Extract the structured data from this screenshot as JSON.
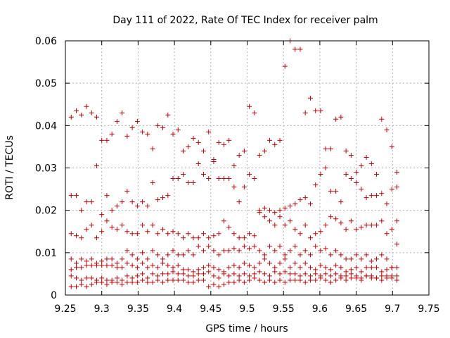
{
  "chart_data": {
    "type": "scatter",
    "title": "Day 111 of 2022, Rate Of TEC Index for receiver palm",
    "xlabel": "GPS time / hours",
    "ylabel": "ROTI / TECUs",
    "xlim": [
      9.25,
      9.75
    ],
    "ylim": [
      0,
      0.06
    ],
    "xticks": [
      "9.25",
      "9.3",
      "9.35",
      "9.4",
      "9.45",
      "9.5",
      "9.55",
      "9.6",
      "9.65",
      "9.7",
      "9.75"
    ],
    "yticks": [
      "0",
      "0.01",
      "0.02",
      "0.03",
      "0.04",
      "0.05",
      "0.06"
    ],
    "grid": true,
    "marker": "plus",
    "color": "#cc0000",
    "series": [
      {
        "x": [
          9.258,
          9.265,
          9.272,
          9.279,
          9.286,
          9.293,
          9.3,
          9.307,
          9.314,
          9.321,
          9.328,
          9.335,
          9.342,
          9.349,
          9.356,
          9.363,
          9.37,
          9.377,
          9.384,
          9.391,
          9.398,
          9.405,
          9.412,
          9.419,
          9.426,
          9.433,
          9.44,
          9.447,
          9.454,
          9.461,
          9.468,
          9.475,
          9.482,
          9.489,
          9.496,
          9.503,
          9.51,
          9.517,
          9.524,
          9.531,
          9.538,
          9.545,
          9.552,
          9.559,
          9.566,
          9.573,
          9.58,
          9.587,
          9.594,
          9.601,
          9.608,
          9.615,
          9.622,
          9.629,
          9.636,
          9.643,
          9.65,
          9.657,
          9.664,
          9.671,
          9.678,
          9.685,
          9.692,
          9.699,
          9.706
        ],
        "y": [
          0.042,
          0.0435,
          0.0425,
          0.0445,
          0.043,
          0.042,
          0.0365,
          0.0365,
          0.038,
          0.041,
          0.043,
          0.0375,
          0.0395,
          0.041,
          0.0385,
          0.038,
          0.0345,
          0.04,
          0.0395,
          0.0425,
          0.038,
          0.039,
          0.034,
          0.035,
          0.037,
          0.036,
          0.034,
          0.0385,
          0.032,
          0.036,
          0.0355,
          0.0365,
          0.0305,
          0.033,
          0.034,
          0.0445,
          0.043,
          0.033,
          0.034,
          0.0365,
          0.0355,
          0.0365,
          0.054,
          0.06,
          0.058,
          0.058,
          0.043,
          0.0465,
          0.0435,
          0.0435,
          0.0345,
          0.0345,
          0.0415,
          0.042,
          0.034,
          0.033,
          0.029,
          0.0305,
          0.0325,
          0.031,
          0.0285,
          0.0415,
          0.039,
          0.035,
          0.029
        ]
      },
      {
        "x": [
          9.258,
          9.265,
          9.272,
          9.279,
          9.286,
          9.293,
          9.3,
          9.307,
          9.314,
          9.321,
          9.328,
          9.335,
          9.342,
          9.349,
          9.356,
          9.363,
          9.37,
          9.377,
          9.384,
          9.391,
          9.398,
          9.405,
          9.412,
          9.419,
          9.426,
          9.433,
          9.44,
          9.447,
          9.454,
          9.461,
          9.468,
          9.475,
          9.482,
          9.489,
          9.496,
          9.503,
          9.51,
          9.517,
          9.524,
          9.531,
          9.538,
          9.545,
          9.552,
          9.559,
          9.566,
          9.573,
          9.58,
          9.587,
          9.594,
          9.601,
          9.608,
          9.615,
          9.622,
          9.629,
          9.636,
          9.643,
          9.65,
          9.657,
          9.664,
          9.671,
          9.678,
          9.685,
          9.692,
          9.699,
          9.706
        ],
        "y": [
          0.0235,
          0.0235,
          0.02,
          0.022,
          0.022,
          0.0305,
          0.019,
          0.0235,
          0.02,
          0.021,
          0.022,
          0.0245,
          0.022,
          0.021,
          0.022,
          0.021,
          0.0265,
          0.0225,
          0.023,
          0.0235,
          0.0275,
          0.0275,
          0.0285,
          0.0265,
          0.0265,
          0.031,
          0.0285,
          0.0275,
          0.0315,
          0.0275,
          0.0275,
          0.0275,
          0.0255,
          0.022,
          0.0255,
          0.0285,
          0.0275,
          0.02,
          0.0205,
          0.02,
          0.0195,
          0.02,
          0.0205,
          0.021,
          0.0215,
          0.0225,
          0.023,
          0.0215,
          0.026,
          0.0285,
          0.03,
          0.0245,
          0.0245,
          0.022,
          0.0285,
          0.0275,
          0.0265,
          0.025,
          0.023,
          0.0235,
          0.0235,
          0.024,
          0.0215,
          0.025,
          0.0255
        ]
      },
      {
        "x": [
          9.258,
          9.265,
          9.272,
          9.279,
          9.286,
          9.293,
          9.3,
          9.307,
          9.314,
          9.321,
          9.328,
          9.335,
          9.342,
          9.349,
          9.356,
          9.363,
          9.37,
          9.377,
          9.384,
          9.391,
          9.398,
          9.405,
          9.412,
          9.419,
          9.426,
          9.433,
          9.44,
          9.447,
          9.454,
          9.461,
          9.468,
          9.475,
          9.482,
          9.489,
          9.496,
          9.503,
          9.51,
          9.517,
          9.524,
          9.531,
          9.538,
          9.545,
          9.552,
          9.559,
          9.566,
          9.573,
          9.58,
          9.587,
          9.594,
          9.601,
          9.608,
          9.615,
          9.622,
          9.629,
          9.636,
          9.643,
          9.65,
          9.657,
          9.664,
          9.671,
          9.678,
          9.685,
          9.692,
          9.699,
          9.706
        ],
        "y": [
          0.0145,
          0.014,
          0.0135,
          0.0155,
          0.0165,
          0.0135,
          0.015,
          0.0175,
          0.016,
          0.0155,
          0.0165,
          0.015,
          0.0145,
          0.0145,
          0.0165,
          0.015,
          0.0165,
          0.0145,
          0.0155,
          0.0145,
          0.015,
          0.0145,
          0.0135,
          0.0145,
          0.0135,
          0.0135,
          0.0145,
          0.0135,
          0.014,
          0.0145,
          0.0175,
          0.016,
          0.0145,
          0.0135,
          0.0135,
          0.0145,
          0.014,
          0.0195,
          0.0185,
          0.0175,
          0.0165,
          0.0185,
          0.0165,
          0.0175,
          0.0155,
          0.0145,
          0.0165,
          0.0135,
          0.0145,
          0.015,
          0.0165,
          0.0185,
          0.018,
          0.017,
          0.0155,
          0.0175,
          0.0155,
          0.016,
          0.0165,
          0.0165,
          0.0165,
          0.0175,
          0.0145,
          0.0155,
          0.0175
        ]
      },
      {
        "x": [
          9.258,
          9.265,
          9.272,
          9.279,
          9.286,
          9.293,
          9.3,
          9.307,
          9.314,
          9.321,
          9.328,
          9.335,
          9.342,
          9.349,
          9.356,
          9.363,
          9.37,
          9.377,
          9.384,
          9.391,
          9.398,
          9.405,
          9.412,
          9.419,
          9.426,
          9.433,
          9.44,
          9.447,
          9.454,
          9.461,
          9.468,
          9.475,
          9.482,
          9.489,
          9.496,
          9.503,
          9.51,
          9.517,
          9.524,
          9.531,
          9.538,
          9.545,
          9.552,
          9.559,
          9.566,
          9.573,
          9.58,
          9.587,
          9.594,
          9.601,
          9.608,
          9.615,
          9.622,
          9.629,
          9.636,
          9.643,
          9.65,
          9.657,
          9.664,
          9.671,
          9.678,
          9.685,
          9.692,
          9.699,
          9.706
        ],
        "y": [
          0.0085,
          0.0075,
          0.0085,
          0.008,
          0.0085,
          0.0075,
          0.008,
          0.0085,
          0.0085,
          0.0075,
          0.0085,
          0.0105,
          0.0095,
          0.0085,
          0.01,
          0.0085,
          0.0105,
          0.0095,
          0.0085,
          0.0095,
          0.0105,
          0.0095,
          0.0095,
          0.0105,
          0.0095,
          0.0115,
          0.0105,
          0.0115,
          0.0105,
          0.0095,
          0.0105,
          0.0105,
          0.011,
          0.0105,
          0.0115,
          0.011,
          0.0115,
          0.0105,
          0.0095,
          0.0115,
          0.0105,
          0.0115,
          0.0095,
          0.0105,
          0.0115,
          0.0095,
          0.0105,
          0.0095,
          0.0115,
          0.0105,
          0.011,
          0.0095,
          0.0105,
          0.0095,
          0.0085,
          0.0085,
          0.0095,
          0.0085,
          0.0095,
          0.008,
          0.0085,
          0.0095,
          0.0085,
          0.0065,
          0.012
        ]
      },
      {
        "x": [
          9.258,
          9.265,
          9.272,
          9.279,
          9.286,
          9.293,
          9.3,
          9.307,
          9.314,
          9.321,
          9.328,
          9.335,
          9.342,
          9.349,
          9.356,
          9.363,
          9.37,
          9.377,
          9.384,
          9.391,
          9.398,
          9.405,
          9.412,
          9.419,
          9.426,
          9.433,
          9.44,
          9.447,
          9.454,
          9.461,
          9.468,
          9.475,
          9.482,
          9.489,
          9.496,
          9.503,
          9.51,
          9.517,
          9.524,
          9.531,
          9.538,
          9.545,
          9.552,
          9.559,
          9.566,
          9.573,
          9.58,
          9.587,
          9.594,
          9.601,
          9.608,
          9.615,
          9.622,
          9.629,
          9.636,
          9.643,
          9.65,
          9.657,
          9.664,
          9.671,
          9.678,
          9.685,
          9.692,
          9.699,
          9.706
        ],
        "y": [
          0.006,
          0.0065,
          0.0065,
          0.007,
          0.007,
          0.007,
          0.007,
          0.007,
          0.007,
          0.0065,
          0.0065,
          0.0075,
          0.007,
          0.0065,
          0.0075,
          0.0065,
          0.007,
          0.0065,
          0.0075,
          0.007,
          0.0065,
          0.007,
          0.006,
          0.006,
          0.0055,
          0.006,
          0.0065,
          0.007,
          0.0065,
          0.006,
          0.0055,
          0.0065,
          0.007,
          0.0065,
          0.0075,
          0.007,
          0.0065,
          0.0075,
          0.0085,
          0.0075,
          0.0065,
          0.0075,
          0.0085,
          0.0065,
          0.0075,
          0.0065,
          0.0075,
          0.0065,
          0.006,
          0.007,
          0.0065,
          0.006,
          0.007,
          0.0065,
          0.0055,
          0.006,
          0.0065,
          0.0055,
          0.0065,
          0.0065,
          0.0065,
          0.0055,
          0.006,
          0.0065,
          0.0065
        ]
      },
      {
        "x": [
          9.258,
          9.265,
          9.272,
          9.279,
          9.286,
          9.293,
          9.3,
          9.307,
          9.314,
          9.321,
          9.328,
          9.335,
          9.342,
          9.349,
          9.356,
          9.363,
          9.37,
          9.377,
          9.384,
          9.391,
          9.398,
          9.405,
          9.412,
          9.419,
          9.426,
          9.433,
          9.44,
          9.447,
          9.454,
          9.461,
          9.468,
          9.475,
          9.482,
          9.489,
          9.496,
          9.503,
          9.51,
          9.517,
          9.524,
          9.531,
          9.538,
          9.545,
          9.552,
          9.559,
          9.566,
          9.573,
          9.58,
          9.587,
          9.594,
          9.601,
          9.608,
          9.615,
          9.622,
          9.629,
          9.636,
          9.643,
          9.65,
          9.657,
          9.664,
          9.671,
          9.678,
          9.685,
          9.692,
          9.699,
          9.706
        ],
        "y": [
          0.0045,
          0.004,
          0.0035,
          0.004,
          0.004,
          0.0035,
          0.004,
          0.0035,
          0.0035,
          0.004,
          0.0035,
          0.0045,
          0.004,
          0.0045,
          0.005,
          0.004,
          0.005,
          0.0045,
          0.005,
          0.005,
          0.0055,
          0.005,
          0.005,
          0.0045,
          0.0045,
          0.005,
          0.005,
          0.0055,
          0.0045,
          0.004,
          0.005,
          0.0045,
          0.005,
          0.0045,
          0.005,
          0.0045,
          0.005,
          0.0055,
          0.005,
          0.0045,
          0.0055,
          0.005,
          0.0055,
          0.005,
          0.005,
          0.0045,
          0.005,
          0.0045,
          0.005,
          0.0045,
          0.005,
          0.0045,
          0.005,
          0.0045,
          0.0045,
          0.005,
          0.0045,
          0.004,
          0.0045,
          0.0045,
          0.004,
          0.0045,
          0.0045,
          0.0045,
          0.0045
        ]
      },
      {
        "x": [
          9.258,
          9.265,
          9.272,
          9.279,
          9.286,
          9.293,
          9.3,
          9.307,
          9.314,
          9.321,
          9.328,
          9.335,
          9.342,
          9.349,
          9.356,
          9.363,
          9.37,
          9.377,
          9.384,
          9.391,
          9.398,
          9.405,
          9.412,
          9.419,
          9.426,
          9.433,
          9.44,
          9.447,
          9.454,
          9.461,
          9.468,
          9.475,
          9.482,
          9.489,
          9.496,
          9.503,
          9.51,
          9.517,
          9.524,
          9.531,
          9.538,
          9.545,
          9.552,
          9.559,
          9.566,
          9.573,
          9.58,
          9.587,
          9.594,
          9.601,
          9.608,
          9.615,
          9.622,
          9.629,
          9.636,
          9.643,
          9.65,
          9.657,
          9.664,
          9.671,
          9.678,
          9.685,
          9.692,
          9.699,
          9.706
        ],
        "y": [
          0.002,
          0.002,
          0.0025,
          0.002,
          0.0025,
          0.003,
          0.003,
          0.0025,
          0.003,
          0.003,
          0.0025,
          0.003,
          0.003,
          0.003,
          0.0035,
          0.003,
          0.003,
          0.0035,
          0.003,
          0.0035,
          0.0035,
          0.0035,
          0.0035,
          0.003,
          0.003,
          0.0035,
          0.0035,
          0.002,
          0.0025,
          0.002,
          0.0025,
          0.003,
          0.003,
          0.0035,
          0.003,
          0.0035,
          0.004,
          0.0035,
          0.003,
          0.0035,
          0.003,
          0.0035,
          0.003,
          0.0035,
          0.0035,
          0.0035,
          0.003,
          0.0035,
          0.0035,
          0.004,
          0.0035,
          0.003,
          0.0035,
          0.004,
          0.0035,
          0.004,
          0.004,
          0.0035,
          0.0045,
          0.004,
          0.004,
          0.0035,
          0.004,
          0.004,
          0.0035
        ]
      }
    ]
  }
}
